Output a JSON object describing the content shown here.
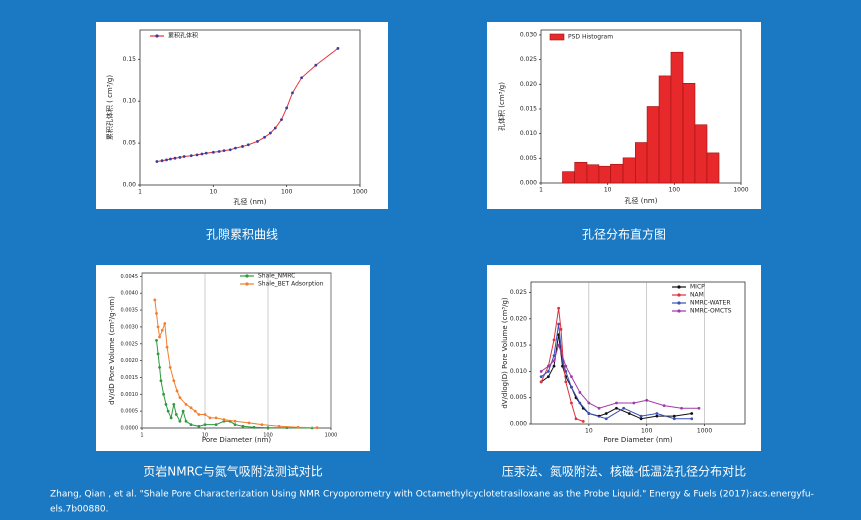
{
  "chart_data": [
    {
      "type": "line",
      "xscale": "log",
      "xlabel": "孔径 (nm)",
      "ylabel": "累积孔体积 ( cm³/g)",
      "xlim": [
        1,
        1000
      ],
      "ylim": [
        0,
        0.185
      ],
      "xticks": [
        1,
        10,
        100,
        1000
      ],
      "yticks": [
        {
          "value": 0,
          "label": "0.00"
        },
        {
          "value": 0.05,
          "label": "0.05"
        },
        {
          "value": 0.1,
          "label": "0.10"
        },
        {
          "value": 0.15,
          "label": "0.15"
        }
      ],
      "grid": false,
      "markers": true,
      "series": [
        {
          "name": "累积孔体积",
          "color": "#e8323a",
          "marker_color": "#3a3aa0",
          "x": [
            1.7,
            2,
            2.3,
            2.6,
            3,
            3.5,
            4,
            5,
            6,
            7,
            8,
            10,
            12,
            14,
            17,
            20,
            25,
            30,
            40,
            50,
            60,
            70,
            85,
            100,
            120,
            160,
            250,
            500
          ],
          "values": [
            0.028,
            0.029,
            0.03,
            0.031,
            0.032,
            0.033,
            0.034,
            0.035,
            0.036,
            0.037,
            0.038,
            0.039,
            0.04,
            0.041,
            0.042,
            0.044,
            0.046,
            0.048,
            0.052,
            0.057,
            0.062,
            0.068,
            0.078,
            0.092,
            0.11,
            0.128,
            0.143,
            0.163
          ]
        }
      ]
    },
    {
      "type": "histogram",
      "xscale": "log",
      "xlabel": "孔径 (nm)",
      "ylabel": "孔体积 (cm³/g)",
      "xlim": [
        1,
        1000
      ],
      "ylim": [
        0,
        0.031
      ],
      "xticks": [
        1,
        10,
        100,
        1000
      ],
      "yticks": [
        {
          "value": 0,
          "label": "0.000"
        },
        {
          "value": 0.005,
          "label": "0.005"
        },
        {
          "value": 0.01,
          "label": "0.010"
        },
        {
          "value": 0.015,
          "label": "0.015"
        },
        {
          "value": 0.02,
          "label": "0.020"
        },
        {
          "value": 0.025,
          "label": "0.025"
        },
        {
          "value": 0.03,
          "label": "0.030"
        }
      ],
      "grid": false,
      "bins": [
        2.1,
        3.2,
        4.9,
        7.4,
        11,
        17,
        26,
        39,
        59,
        89,
        135,
        204,
        309,
        468
      ],
      "series": [
        {
          "name": "PSD Histogram",
          "color": "#e8292b",
          "values": [
            0.0023,
            0.0042,
            0.0037,
            0.0034,
            0.0038,
            0.0051,
            0.0082,
            0.0155,
            0.0217,
            0.0265,
            0.0202,
            0.0118,
            0.0061
          ]
        }
      ]
    },
    {
      "type": "line",
      "xscale": "log",
      "xlabel": "Pore Diameter (nm)",
      "ylabel": "dV/dD Pore Volume (cm³/g·nm)",
      "xlim": [
        1,
        1000
      ],
      "ylim": [
        0,
        0.0046
      ],
      "xticks": [
        1,
        10,
        100,
        1000
      ],
      "yticks": [
        {
          "value": 0,
          "label": "0.0000"
        },
        {
          "value": 0.0005,
          "label": "0.0005"
        },
        {
          "value": 0.001,
          "label": "0.0010"
        },
        {
          "value": 0.0015,
          "label": "0.0015"
        },
        {
          "value": 0.002,
          "label": "0.0020"
        },
        {
          "value": 0.0025,
          "label": "0.0025"
        },
        {
          "value": 0.003,
          "label": "0.0030"
        },
        {
          "value": 0.0035,
          "label": "0.0035"
        },
        {
          "value": 0.004,
          "label": "0.0040"
        },
        {
          "value": 0.0045,
          "label": "0.0045"
        }
      ],
      "grid": true,
      "markers": true,
      "series": [
        {
          "name": "Shale_NMRC",
          "color": "#2e9a3e",
          "x": [
            1.7,
            1.8,
            1.9,
            2.0,
            2.2,
            2.4,
            2.6,
            2.9,
            3.2,
            3.5,
            4,
            4.5,
            5,
            6,
            8,
            10,
            15,
            20,
            25,
            30,
            40,
            60,
            100,
            200,
            500
          ],
          "values": [
            0.0026,
            0.0022,
            0.0018,
            0.0014,
            0.001,
            0.0007,
            0.0005,
            0.0003,
            0.0007,
            0.0004,
            0.0002,
            0.0005,
            0.0002,
            0.0001,
            5e-05,
            0.0001,
            0.0001,
            0.0002,
            0.0002,
            0.0001,
            5e-05,
            2e-05,
            1e-05,
            1e-05,
            0
          ]
        },
        {
          "name": "Shale_BET Adsorption",
          "color": "#f07f2f",
          "x": [
            1.6,
            1.7,
            1.8,
            1.9,
            2.1,
            2.3,
            2.5,
            2.8,
            3.2,
            3.6,
            4,
            5,
            6,
            7,
            8,
            10,
            12,
            15,
            20,
            30,
            50,
            80,
            150,
            300,
            600
          ],
          "values": [
            0.0038,
            0.0034,
            0.003,
            0.0027,
            0.0029,
            0.0031,
            0.0024,
            0.0018,
            0.0014,
            0.0011,
            0.0009,
            0.0007,
            0.0006,
            0.0005,
            0.0004,
            0.0004,
            0.0003,
            0.0003,
            0.00025,
            0.0002,
            0.00015,
            0.0001,
            5e-05,
            2e-05,
            1e-05
          ]
        }
      ]
    },
    {
      "type": "line",
      "xscale": "log",
      "xlabel": "Pore Diameter (nm)",
      "ylabel": "dV/dlog(D) Pore Volume (cm³/g)",
      "xlim": [
        1,
        5000
      ],
      "ylim": [
        0,
        0.027
      ],
      "xticks": [
        10,
        100,
        1000
      ],
      "yticks": [
        {
          "value": 0,
          "label": "0.000"
        },
        {
          "value": 0.005,
          "label": "0.005"
        },
        {
          "value": 0.01,
          "label": "0.010"
        },
        {
          "value": 0.015,
          "label": "0.015"
        },
        {
          "value": 0.02,
          "label": "0.020"
        },
        {
          "value": 0.025,
          "label": "0.025"
        }
      ],
      "grid": true,
      "markers": true,
      "series": [
        {
          "name": "MICP",
          "color": "#111111",
          "x": [
            1.5,
            2,
            2.5,
            3,
            3.5,
            4,
            5,
            6,
            8,
            10,
            15,
            20,
            30,
            50,
            80,
            150,
            300,
            600
          ],
          "values": [
            0.008,
            0.009,
            0.011,
            0.017,
            0.011,
            0.009,
            0.007,
            0.005,
            0.003,
            0.002,
            0.0015,
            0.002,
            0.003,
            0.002,
            0.001,
            0.0015,
            0.0015,
            0.002
          ]
        },
        {
          "name": "NAM",
          "color": "#e0303a",
          "x": [
            1.5,
            2,
            2.5,
            3,
            3.3,
            3.6,
            4,
            5,
            6,
            8
          ],
          "values": [
            0.008,
            0.011,
            0.016,
            0.022,
            0.018,
            0.012,
            0.008,
            0.004,
            0.001,
            0.0005
          ]
        },
        {
          "name": "NMRC-WATER",
          "color": "#3a4fb8",
          "x": [
            1.5,
            2,
            2.5,
            3,
            3.5,
            4,
            5,
            7,
            10,
            20,
            40,
            80,
            150,
            300,
            600
          ],
          "values": [
            0.009,
            0.01,
            0.013,
            0.019,
            0.012,
            0.01,
            0.007,
            0.004,
            0.002,
            0.001,
            0.003,
            0.0015,
            0.002,
            0.001,
            0.001
          ]
        },
        {
          "name": "NMRC-OMCTS",
          "color": "#a03aa8",
          "x": [
            1.5,
            2,
            2.5,
            3,
            4,
            5,
            7,
            10,
            15,
            30,
            60,
            100,
            200,
            400,
            800
          ],
          "values": [
            0.01,
            0.011,
            0.012,
            0.015,
            0.011,
            0.009,
            0.006,
            0.004,
            0.003,
            0.004,
            0.004,
            0.0045,
            0.0035,
            0.003,
            0.003
          ]
        }
      ]
    }
  ],
  "captions": [
    "孔隙累积曲线",
    "孔径分布直方图",
    "页岩NMRC与氮气吸附法测试对比",
    "压汞法、氮吸附法、核磁-低温法孔径分布对比"
  ],
  "citation": [
    "Zhang, Qian , et al. \"Shale Pore Characterization Using NMR Cryoporometry with Octamethylcyclotetrasiloxane as the Probe Liquid.\" Energy & Fuels (2017):acs.energyfu-",
    "els.7b00880."
  ]
}
